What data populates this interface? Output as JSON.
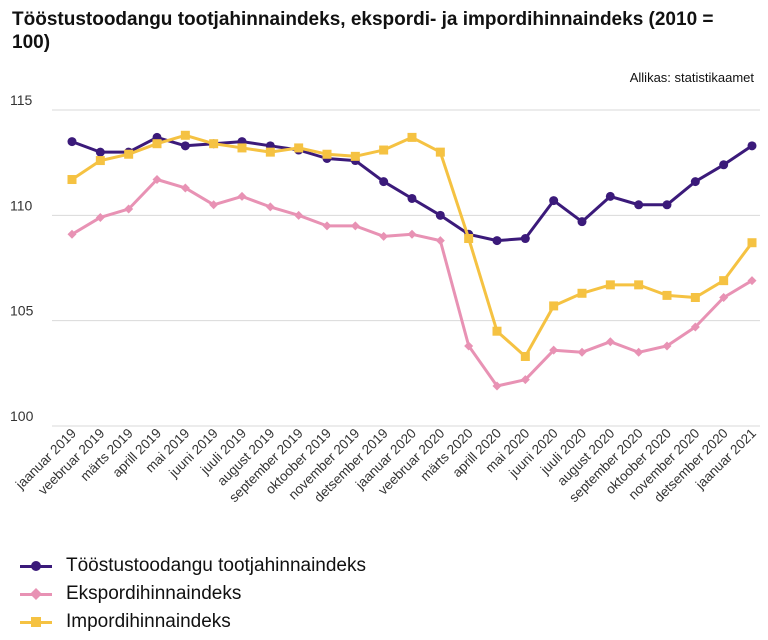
{
  "chart_data": {
    "type": "line",
    "title": "Tööstustoodangu tootjahinnaindeks, ekspordi- ja impordihinnaindeks (2010 = 100)",
    "source": "Allikas: statistikaamet",
    "xlabel": "",
    "ylabel": "",
    "ylim": [
      100,
      115
    ],
    "yticks": [
      100,
      105,
      110,
      115
    ],
    "grid": true,
    "legend_position": "bottom-left",
    "categories": [
      "jaanuar 2019",
      "veebruar 2019",
      "märts 2019",
      "aprill 2019",
      "mai 2019",
      "juuni 2019",
      "juuli 2019",
      "august 2019",
      "september 2019",
      "oktoober 2019",
      "november 2019",
      "detsember 2019",
      "jaanuar 2020",
      "veebruar 2020",
      "märts 2020",
      "aprill 2020",
      "mai 2020",
      "juuni 2020",
      "juuli 2020",
      "august 2020",
      "september 2020",
      "oktoober 2020",
      "november 2020",
      "detsember 2020",
      "jaanuar 2021"
    ],
    "series": [
      {
        "name": "Tööstustoodangu tootjahinnaindeks",
        "color": "#3b1a7a",
        "marker": "circle",
        "values": [
          113.5,
          113.0,
          113.0,
          113.7,
          113.3,
          113.4,
          113.5,
          113.3,
          113.1,
          112.7,
          112.6,
          111.6,
          110.8,
          110.0,
          109.1,
          108.8,
          108.9,
          110.7,
          109.7,
          110.9,
          110.5,
          110.5,
          111.6,
          112.4,
          113.3
        ]
      },
      {
        "name": "Ekspordihinnaindeks",
        "color": "#e892b4",
        "marker": "diamond",
        "values": [
          109.1,
          109.9,
          110.3,
          111.7,
          111.3,
          110.5,
          110.9,
          110.4,
          110.0,
          109.5,
          109.5,
          109.0,
          109.1,
          108.8,
          103.8,
          101.9,
          102.2,
          103.6,
          103.5,
          104.0,
          103.5,
          103.8,
          104.7,
          106.1,
          106.9
        ]
      },
      {
        "name": "Impordihinnaindeks",
        "color": "#f5c242",
        "marker": "square",
        "values": [
          111.7,
          112.6,
          112.9,
          113.4,
          113.8,
          113.4,
          113.2,
          113.0,
          113.2,
          112.9,
          112.8,
          113.1,
          113.7,
          113.0,
          108.9,
          104.5,
          103.3,
          105.7,
          106.3,
          106.7,
          106.7,
          106.2,
          106.1,
          106.9,
          108.7
        ]
      }
    ]
  }
}
